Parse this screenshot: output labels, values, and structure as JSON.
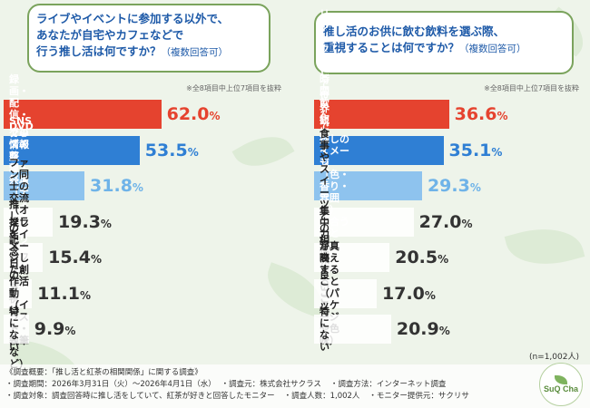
{
  "chart_data": [
    {
      "type": "bar",
      "title": "ライブやイベントに参加する以外で、\nあなたが自宅やカフェなどで\n行う推し活は何ですか？",
      "title_note": "（複数回答可）",
      "subnote": "※全8項目中上位7項目を抜粋",
      "categories": [
        "録画・配信・DVDの鑑賞",
        "SNSでの情報収集・発信",
        "グッズの整理・祭壇（ディスプレイ）作り",
        "ファン同士の交流（オンライン・オフライン）",
        "推しの記念日のお祝い",
        "推しをイメージした創作活動\n（イラスト・執筆など）",
        "特にない"
      ],
      "values": [
        62.0,
        53.5,
        31.8,
        19.3,
        15.4,
        11.1,
        9.9
      ],
      "value_labels": [
        "62.0",
        "53.5",
        "31.8",
        "19.3",
        "15.4",
        "11.1",
        "9.9"
      ],
      "unit": "%",
      "bar_colors": [
        "#e5432f",
        "#2f7fd4",
        "#8ec3ee",
        "#ffffff",
        "#ffffff",
        "#ffffff",
        "#ffffff"
      ],
      "value_colors": [
        "#e5432f",
        "#2f7fd4",
        "#6fb3e8",
        "#333333",
        "#333333",
        "#333333",
        "#333333"
      ],
      "xlim": [
        0,
        100
      ]
    },
    {
      "type": "bar",
      "title": "推し活のお供に飲む飲料を選ぶ際、\n重視することは何ですか？",
      "title_note": "（複数回答可）",
      "subnote": "※全8項目中上位7項目を抜粋",
      "categories": [
        "リラックスして世界観に\n没入できること",
        "長時間飲んでいても\n飽きないこと",
        "推しのイメージ（色・香り・雰囲気）\nに合うこと",
        "食事やスイーツとの相性が良いこと",
        "集中力が高まること",
        "写真映えすること\n（パッケージや色味）",
        "特にない"
      ],
      "values": [
        36.6,
        35.1,
        29.3,
        27.0,
        20.5,
        17.0,
        20.9
      ],
      "value_labels": [
        "36.6",
        "35.1",
        "29.3",
        "27.0",
        "20.5",
        "17.0",
        "20.9"
      ],
      "unit": "%",
      "bar_colors": [
        "#e5432f",
        "#2f7fd4",
        "#8ec3ee",
        "#ffffff",
        "#ffffff",
        "#ffffff",
        "#ffffff"
      ],
      "value_colors": [
        "#e5432f",
        "#2f7fd4",
        "#6fb3e8",
        "#333333",
        "#333333",
        "#333333",
        "#333333"
      ],
      "xlim": [
        0,
        100
      ],
      "n_note": "(n=1,002人)"
    }
  ],
  "footer": {
    "line1": "《調査概要：「推し活と紅茶の相関関係」に関する調査》",
    "period": "・調査期間：2026年3月31日（火）〜2026年4月1日（水）",
    "org": "・調査元：株式会社サクラス",
    "method": "・調査方法：インターネット調査",
    "target": "・調査対象：調査回答時に推し活をしていて、紅茶が好きと回答したモニター",
    "count": "・調査人数：1,002人",
    "provider": "・モニター提供元：サクリサ"
  },
  "logo": {
    "text": "SuQ Cha",
    "icon": "leaf-icon"
  }
}
